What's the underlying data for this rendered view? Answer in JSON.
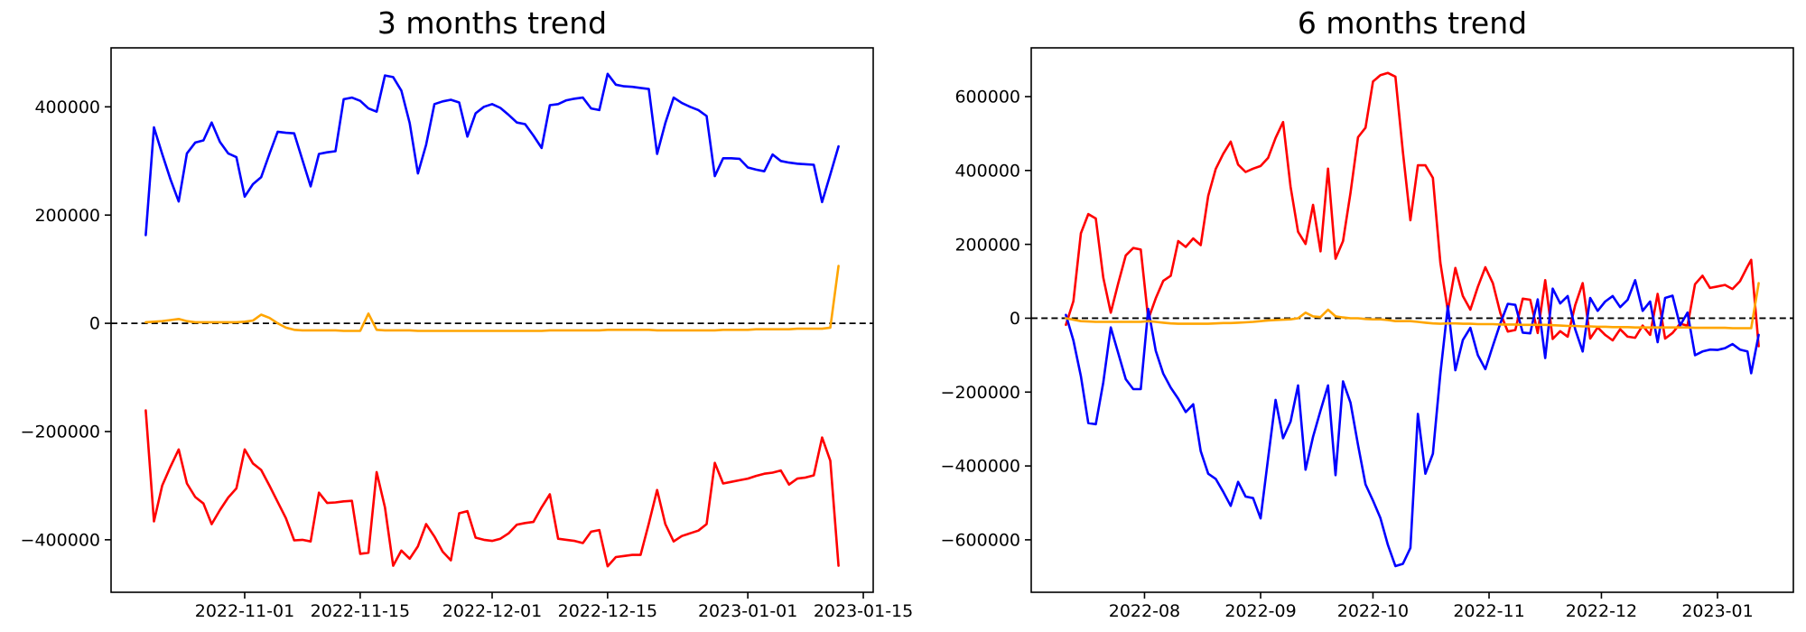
{
  "figure": {
    "background": "#ffffff",
    "text_color": "#000000",
    "spine_color": "#000000"
  },
  "chart_data": [
    {
      "type": "line",
      "title": "3 months trend",
      "xlabel": "",
      "ylabel": "",
      "grid": false,
      "legend": "none",
      "zero_line": {
        "style": "dashed",
        "color": "#000000",
        "y": 0
      },
      "ylim": [
        -497000,
        509000
      ],
      "yticks": [
        {
          "value": -400000,
          "label": "−400000"
        },
        {
          "value": -200000,
          "label": "−200000"
        },
        {
          "value": 0,
          "label": "0"
        },
        {
          "value": 200000,
          "label": "200000"
        },
        {
          "value": 400000,
          "label": "400000"
        }
      ],
      "xticks": [
        {
          "date": "2022-11-01",
          "label": "2022-11-01"
        },
        {
          "date": "2022-11-15",
          "label": "2022-11-15"
        },
        {
          "date": "2022-12-01",
          "label": "2022-12-01"
        },
        {
          "date": "2022-12-15",
          "label": "2022-12-15"
        },
        {
          "date": "2023-01-01",
          "label": "2023-01-01"
        },
        {
          "date": "2023-01-15",
          "label": "2023-01-15"
        }
      ],
      "x": [
        "2022-10-20",
        "2022-10-21",
        "2022-10-22",
        "2022-10-23",
        "2022-10-24",
        "2022-10-25",
        "2022-10-26",
        "2022-10-27",
        "2022-10-28",
        "2022-10-29",
        "2022-10-30",
        "2022-10-31",
        "2022-11-01",
        "2022-11-02",
        "2022-11-03",
        "2022-11-04",
        "2022-11-05",
        "2022-11-06",
        "2022-11-07",
        "2022-11-08",
        "2022-11-09",
        "2022-11-10",
        "2022-11-11",
        "2022-11-12",
        "2022-11-13",
        "2022-11-14",
        "2022-11-15",
        "2022-11-16",
        "2022-11-17",
        "2022-11-18",
        "2022-11-19",
        "2022-11-20",
        "2022-11-21",
        "2022-11-22",
        "2022-11-23",
        "2022-11-24",
        "2022-11-25",
        "2022-11-26",
        "2022-11-27",
        "2022-11-28",
        "2022-11-29",
        "2022-11-30",
        "2022-12-01",
        "2022-12-02",
        "2022-12-03",
        "2022-12-04",
        "2022-12-05",
        "2022-12-06",
        "2022-12-07",
        "2022-12-08",
        "2022-12-09",
        "2022-12-10",
        "2022-12-11",
        "2022-12-12",
        "2022-12-13",
        "2022-12-14",
        "2022-12-15",
        "2022-12-16",
        "2022-12-17",
        "2022-12-18",
        "2022-12-19",
        "2022-12-20",
        "2022-12-21",
        "2022-12-22",
        "2022-12-23",
        "2022-12-24",
        "2022-12-25",
        "2022-12-26",
        "2022-12-27",
        "2022-12-28",
        "2022-12-29",
        "2022-12-30",
        "2022-12-31",
        "2023-01-01",
        "2023-01-02",
        "2023-01-03",
        "2023-01-04",
        "2023-01-05",
        "2023-01-06",
        "2023-01-07",
        "2023-01-08",
        "2023-01-09",
        "2023-01-10",
        "2023-01-11",
        "2023-01-12"
      ],
      "series": [
        {
          "name": "red",
          "color": "#ff0000",
          "values": [
            -161000,
            -366000,
            -300000,
            -265000,
            -233000,
            -296000,
            -321000,
            -333000,
            -371000,
            -345000,
            -322000,
            -305000,
            -233000,
            -259000,
            -271000,
            -300000,
            -330000,
            -360000,
            -401000,
            -400000,
            -403000,
            -313000,
            -332000,
            -331000,
            -329000,
            -328000,
            -426000,
            -424000,
            -275000,
            -340000,
            -448000,
            -420000,
            -435000,
            -412000,
            -371000,
            -394000,
            -422000,
            -438000,
            -351000,
            -347000,
            -396000,
            -400000,
            -402000,
            -398000,
            -388000,
            -372000,
            -369000,
            -367000,
            -340000,
            -316000,
            -398000,
            -400000,
            -402000,
            -406000,
            -385000,
            -382000,
            -449000,
            -432000,
            -430000,
            -428000,
            -428000,
            -370000,
            -308000,
            -371000,
            -403000,
            -393000,
            -388000,
            -383000,
            -371000,
            -258000,
            -296000,
            -293000,
            -290000,
            -287000,
            -282000,
            -278000,
            -276000,
            -272000,
            -298000,
            -287000,
            -285000,
            -281000,
            -211000,
            -254000,
            -448000
          ]
        },
        {
          "name": "blue",
          "color": "#0000ff",
          "values": [
            163000,
            362000,
            313000,
            266000,
            225000,
            314000,
            334000,
            338000,
            371000,
            335000,
            314000,
            307000,
            234000,
            257000,
            270000,
            313000,
            354000,
            352000,
            351000,
            302000,
            253000,
            313000,
            316000,
            318000,
            414000,
            417000,
            411000,
            397000,
            391000,
            458000,
            455000,
            430000,
            370000,
            277000,
            330000,
            405000,
            410000,
            413000,
            408000,
            345000,
            388000,
            400000,
            405000,
            398000,
            385000,
            371000,
            368000,
            347000,
            324000,
            403000,
            405000,
            412000,
            415000,
            417000,
            397000,
            394000,
            461000,
            441000,
            438000,
            437000,
            435000,
            433000,
            313000,
            370000,
            417000,
            407000,
            400000,
            394000,
            383000,
            272000,
            305000,
            305000,
            304000,
            288000,
            284000,
            281000,
            312000,
            300000,
            297000,
            295000,
            294000,
            293000,
            224000,
            275000,
            327000
          ]
        },
        {
          "name": "orange",
          "color": "#ffa500",
          "values": [
            2000,
            3000,
            4000,
            6000,
            8000,
            4000,
            2000,
            2000,
            2000,
            2000,
            2000,
            2000,
            3000,
            5000,
            16000,
            10000,
            0,
            -8000,
            -12000,
            -13000,
            -13000,
            -13000,
            -13000,
            -13000,
            -14000,
            -14000,
            -14000,
            18000,
            -12000,
            -13000,
            -13000,
            -13000,
            -13000,
            -14000,
            -14000,
            -14000,
            -14000,
            -14000,
            -14000,
            -14000,
            -14000,
            -14000,
            -14000,
            -14000,
            -14000,
            -14000,
            -14000,
            -14000,
            -14000,
            -13000,
            -13000,
            -13000,
            -13000,
            -13000,
            -13000,
            -13000,
            -12000,
            -12000,
            -12000,
            -12000,
            -12000,
            -12000,
            -13000,
            -13000,
            -13000,
            -13000,
            -13000,
            -13000,
            -13000,
            -13000,
            -12000,
            -12000,
            -12000,
            -12000,
            -11000,
            -11000,
            -11000,
            -11000,
            -11000,
            -10000,
            -10000,
            -10000,
            -10000,
            -8000,
            106000
          ]
        }
      ]
    },
    {
      "type": "line",
      "title": "6 months trend",
      "xlabel": "",
      "ylabel": "",
      "grid": false,
      "legend": "none",
      "zero_line": {
        "style": "dashed",
        "color": "#000000",
        "y": 0
      },
      "ylim": [
        -742000,
        732000
      ],
      "yticks": [
        {
          "value": -600000,
          "label": "−600000"
        },
        {
          "value": -400000,
          "label": "−400000"
        },
        {
          "value": -200000,
          "label": "−200000"
        },
        {
          "value": 0,
          "label": "0"
        },
        {
          "value": 200000,
          "label": "200000"
        },
        {
          "value": 400000,
          "label": "400000"
        },
        {
          "value": 600000,
          "label": "600000"
        }
      ],
      "xticks": [
        {
          "date": "2022-08-01",
          "label": "2022-08"
        },
        {
          "date": "2022-09-01",
          "label": "2022-09"
        },
        {
          "date": "2022-10-01",
          "label": "2022-10"
        },
        {
          "date": "2022-11-01",
          "label": "2022-11"
        },
        {
          "date": "2022-12-01",
          "label": "2022-12"
        },
        {
          "date": "2023-01-01",
          "label": "2023-01"
        }
      ],
      "x": [
        "2022-07-11",
        "2022-07-13",
        "2022-07-15",
        "2022-07-17",
        "2022-07-19",
        "2022-07-21",
        "2022-07-23",
        "2022-07-25",
        "2022-07-27",
        "2022-07-29",
        "2022-07-31",
        "2022-08-02",
        "2022-08-04",
        "2022-08-06",
        "2022-08-08",
        "2022-08-10",
        "2022-08-12",
        "2022-08-14",
        "2022-08-16",
        "2022-08-18",
        "2022-08-20",
        "2022-08-22",
        "2022-08-24",
        "2022-08-26",
        "2022-08-28",
        "2022-08-30",
        "2022-09-01",
        "2022-09-03",
        "2022-09-05",
        "2022-09-07",
        "2022-09-09",
        "2022-09-11",
        "2022-09-13",
        "2022-09-15",
        "2022-09-17",
        "2022-09-19",
        "2022-09-21",
        "2022-09-23",
        "2022-09-25",
        "2022-09-27",
        "2022-09-29",
        "2022-10-01",
        "2022-10-03",
        "2022-10-05",
        "2022-10-07",
        "2022-10-09",
        "2022-10-11",
        "2022-10-13",
        "2022-10-15",
        "2022-10-17",
        "2022-10-19",
        "2022-10-21",
        "2022-10-23",
        "2022-10-25",
        "2022-10-27",
        "2022-10-29",
        "2022-10-31",
        "2022-11-02",
        "2022-11-04",
        "2022-11-06",
        "2022-11-08",
        "2022-11-10",
        "2022-11-12",
        "2022-11-14",
        "2022-11-16",
        "2022-11-18",
        "2022-11-20",
        "2022-11-22",
        "2022-11-24",
        "2022-11-26",
        "2022-11-28",
        "2022-11-30",
        "2022-12-02",
        "2022-12-04",
        "2022-12-06",
        "2022-12-08",
        "2022-12-10",
        "2022-12-12",
        "2022-12-14",
        "2022-12-16",
        "2022-12-18",
        "2022-12-20",
        "2022-12-22",
        "2022-12-24",
        "2022-12-26",
        "2022-12-28",
        "2022-12-30",
        "2023-01-01",
        "2023-01-03",
        "2023-01-05",
        "2023-01-07",
        "2023-01-09",
        "2023-01-10",
        "2023-01-12"
      ],
      "series": [
        {
          "name": "red",
          "color": "#ff0000",
          "values": [
            -18000,
            46000,
            230000,
            282000,
            270000,
            110000,
            15000,
            95000,
            170000,
            190000,
            186000,
            -3000,
            54000,
            101000,
            115000,
            209000,
            193000,
            216000,
            198000,
            331000,
            404000,
            445000,
            478000,
            416000,
            396000,
            405000,
            412000,
            434000,
            488000,
            531000,
            356000,
            234000,
            201000,
            307000,
            181000,
            405000,
            161000,
            209000,
            340000,
            490000,
            516000,
            641000,
            658000,
            664000,
            654000,
            450000,
            265000,
            414000,
            414000,
            380000,
            150000,
            20000,
            136000,
            60000,
            23000,
            85000,
            138000,
            95000,
            14000,
            -36000,
            -32000,
            53000,
            50000,
            -40000,
            103000,
            -56000,
            -35000,
            -50000,
            35000,
            95000,
            -55000,
            -25000,
            -45000,
            -60000,
            -30000,
            -50000,
            -53000,
            -20000,
            -45000,
            66000,
            -55000,
            -40000,
            -15000,
            -20000,
            92000,
            115000,
            82000,
            86000,
            90000,
            79000,
            100000,
            140000,
            158000,
            -76000
          ]
        },
        {
          "name": "blue",
          "color": "#0000ff",
          "values": [
            9000,
            -60000,
            -157000,
            -284000,
            -287000,
            -174000,
            -25000,
            -95000,
            -165000,
            -192000,
            -192000,
            25000,
            -88000,
            -150000,
            -188000,
            -218000,
            -254000,
            -233000,
            -360000,
            -421000,
            -435000,
            -470000,
            -508000,
            -443000,
            -483000,
            -487000,
            -542000,
            -380000,
            -221000,
            -325000,
            -280000,
            -182000,
            -410000,
            -321000,
            -250000,
            -182000,
            -425000,
            -171000,
            -229000,
            -343000,
            -450000,
            -494000,
            -541000,
            -614000,
            -671000,
            -665000,
            -622000,
            -259000,
            -421000,
            -367000,
            -150000,
            33000,
            -141000,
            -59000,
            -26000,
            -100000,
            -138000,
            -75000,
            -14000,
            39000,
            36000,
            -39000,
            -41000,
            51000,
            -108000,
            80000,
            40000,
            60000,
            -30000,
            -90000,
            55000,
            20000,
            45000,
            60000,
            30000,
            50000,
            103000,
            20000,
            45000,
            -65000,
            55000,
            61000,
            -20000,
            15000,
            -100000,
            -90000,
            -85000,
            -86000,
            -81000,
            -70000,
            -85000,
            -90000,
            -149000,
            -45000
          ]
        },
        {
          "name": "orange",
          "color": "#ffa500",
          "values": [
            0,
            -4000,
            -8000,
            -9000,
            -10000,
            -10000,
            -10000,
            -10000,
            -10000,
            -10000,
            -10000,
            -8000,
            -10000,
            -12000,
            -14000,
            -15000,
            -15000,
            -15000,
            -15000,
            -15000,
            -14000,
            -13000,
            -13000,
            -12000,
            -11000,
            -10000,
            -8000,
            -6000,
            -5000,
            -4000,
            -3000,
            0,
            15000,
            5000,
            3000,
            23000,
            5000,
            2000,
            0,
            0,
            -2000,
            -3000,
            -3000,
            -5000,
            -8000,
            -8000,
            -8000,
            -10000,
            -12000,
            -14000,
            -15000,
            -14000,
            -14000,
            -15000,
            -15000,
            -16000,
            -16000,
            -16000,
            -17000,
            -17000,
            -17000,
            -18000,
            -18000,
            -18000,
            -18000,
            -19000,
            -20000,
            -21000,
            -21000,
            -22000,
            -22000,
            -23000,
            -23000,
            -24000,
            -24000,
            -24000,
            -25000,
            -25000,
            -25000,
            -25000,
            -25000,
            -25000,
            -25000,
            -25000,
            -26000,
            -26000,
            -26000,
            -26000,
            -26000,
            -27000,
            -27000,
            -27000,
            -27000,
            95000
          ]
        }
      ]
    }
  ]
}
